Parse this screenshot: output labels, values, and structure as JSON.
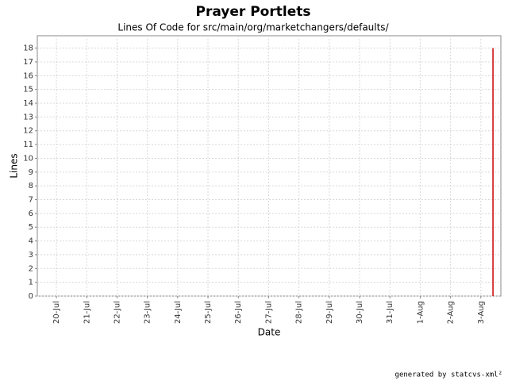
{
  "chart_data": {
    "type": "line",
    "title": "Prayer Portlets",
    "subtitle": "Lines Of Code for src/main/org/marketchangers/defaults/",
    "x_label": "Date",
    "y_label": "Lines",
    "x": [
      14.4,
      14.4
    ],
    "values": [
      0,
      18
    ],
    "color": "#cc0000",
    "xlim": [
      -0.63,
      14.66
    ],
    "xticks": [
      {
        "value": 0,
        "label": "20-Jul"
      },
      {
        "value": 1,
        "label": "21-Jul"
      },
      {
        "value": 2,
        "label": "22-Jul"
      },
      {
        "value": 3,
        "label": "23-Jul"
      },
      {
        "value": 4,
        "label": "24-Jul"
      },
      {
        "value": 5,
        "label": "25-Jul"
      },
      {
        "value": 6,
        "label": "26-Jul"
      },
      {
        "value": 7,
        "label": "27-Jul"
      },
      {
        "value": 8,
        "label": "28-Jul"
      },
      {
        "value": 9,
        "label": "29-Jul"
      },
      {
        "value": 10,
        "label": "30-Jul"
      },
      {
        "value": 11,
        "label": "31-Jul"
      },
      {
        "value": 12,
        "label": "1-Aug"
      },
      {
        "value": 13,
        "label": "2-Aug"
      },
      {
        "value": 14,
        "label": "3-Aug"
      }
    ],
    "ylim": [
      0,
      18.9
    ],
    "yticks": [
      0,
      1,
      2,
      3,
      4,
      5,
      6,
      7,
      8,
      9,
      10,
      11,
      12,
      13,
      14,
      15,
      16,
      17,
      18
    ],
    "grid": true,
    "footer": "generated by statcvs-xml²"
  }
}
